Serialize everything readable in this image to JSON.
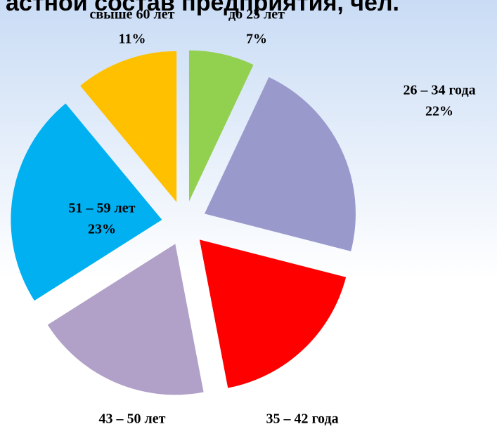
{
  "chart_data": {
    "type": "pie",
    "title": "астной состав предприятия, чел.",
    "categories": [
      "до 25 лет",
      "26 – 34 года",
      "35 – 42 года",
      "43 – 50 лет",
      "51 – 59 лет",
      "свыше 60 лет"
    ],
    "values": [
      7,
      22,
      18,
      19,
      23,
      11
    ],
    "value_labels": [
      "7%",
      "22%",
      null,
      null,
      "23%",
      "11%"
    ],
    "colors": [
      "#92d050",
      "#9999cc",
      "#ff0000",
      "#b1a0c7",
      "#00b0f0",
      "#ffc000"
    ]
  }
}
